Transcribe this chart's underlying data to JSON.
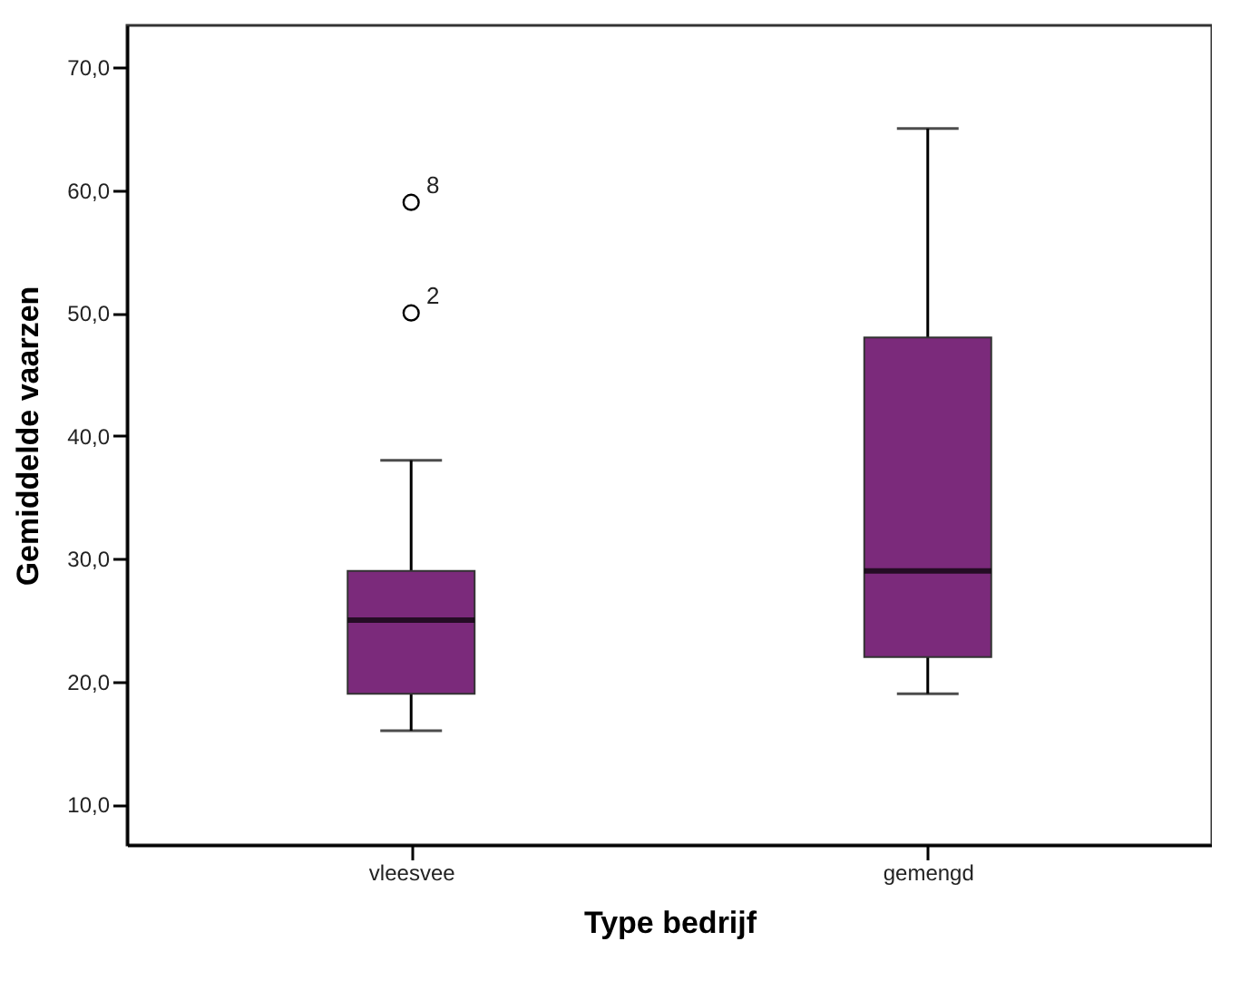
{
  "chart_data": {
    "type": "box",
    "xlabel": "Type bedrijf",
    "ylabel": "Gemiddelde vaarzen",
    "categories": [
      "vleesvee",
      "gemengd"
    ],
    "color": "#7b2a7b",
    "boxes": [
      {
        "low": 16,
        "q1": 19,
        "median": 25,
        "q3": 29,
        "high": 38,
        "outliers": [
          59,
          50
        ]
      },
      {
        "low": 19,
        "q1": 22,
        "median": 29,
        "q3": 48,
        "high": 65
      }
    ],
    "ylim": [
      6.7,
      73.4
    ],
    "yticks": [
      {
        "value": 10,
        "label": "10,0"
      },
      {
        "value": 20,
        "label": "20,0"
      },
      {
        "value": 30,
        "label": "30,0"
      },
      {
        "value": 40,
        "label": "40,0"
      },
      {
        "value": 50,
        "label": "50,0"
      },
      {
        "value": 60,
        "label": "60,0"
      },
      {
        "value": 70,
        "label": "70,0"
      }
    ],
    "annotations": [
      "8",
      "2"
    ]
  }
}
